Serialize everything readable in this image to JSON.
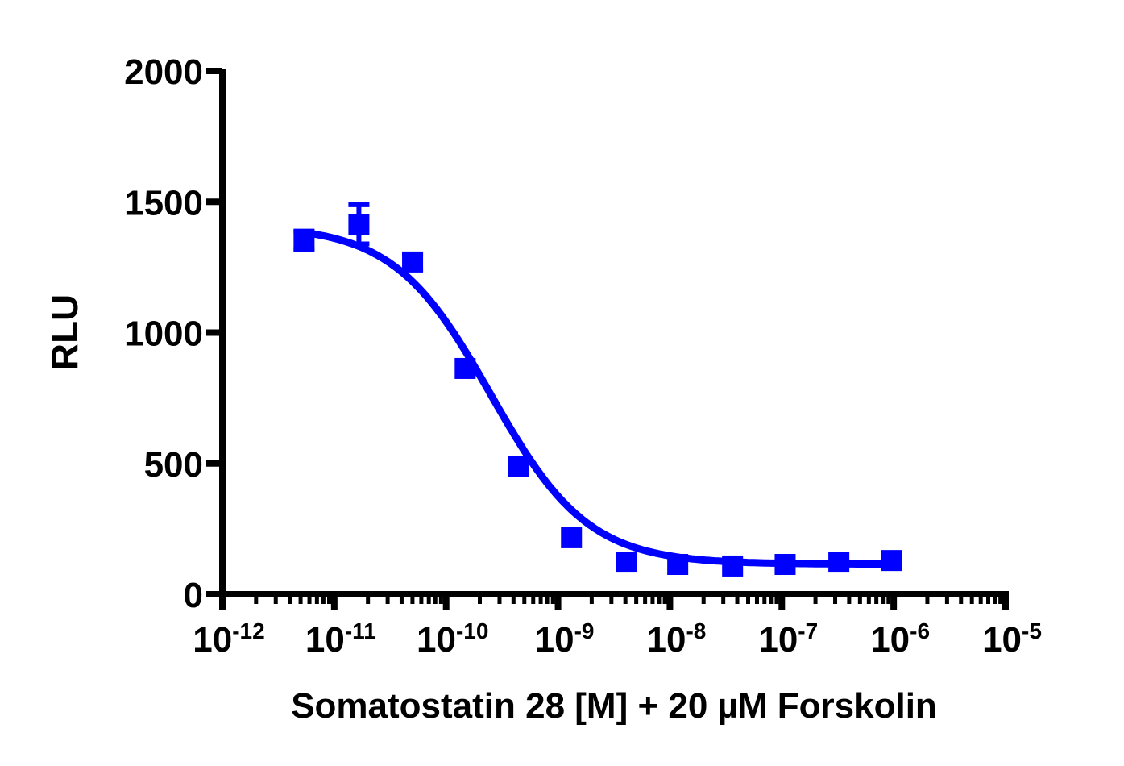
{
  "chart_data": {
    "type": "scatter",
    "title": "",
    "xlabel": "Somatostatin 28 [M]  + 20 µM Forskolin",
    "ylabel": "RLU",
    "xscale": "log",
    "xlim_log10": [
      -12,
      -5
    ],
    "ylim": [
      0,
      2000
    ],
    "grid": false,
    "legend": null,
    "y_ticks": [
      "0",
      "500",
      "1000",
      "1500",
      "2000"
    ],
    "x_ticks": [
      {
        "base": "10",
        "exp": "-12"
      },
      {
        "base": "10",
        "exp": "-11"
      },
      {
        "base": "10",
        "exp": "-10"
      },
      {
        "base": "10",
        "exp": "-9"
      },
      {
        "base": "10",
        "exp": "-8"
      },
      {
        "base": "10",
        "exp": "-7"
      },
      {
        "base": "10",
        "exp": "-6"
      },
      {
        "base": "10",
        "exp": "-5"
      }
    ],
    "series": [
      {
        "name": "Somatostatin 28",
        "color": "#0000ff",
        "marker": "square",
        "x_log10": [
          -11.27,
          -10.78,
          -10.3,
          -9.83,
          -9.35,
          -8.88,
          -8.39,
          -7.93,
          -7.44,
          -6.97,
          -6.49,
          -6.02
        ],
        "values": [
          1353,
          1414,
          1270,
          863,
          490,
          216,
          123,
          114,
          108,
          114,
          123,
          129
        ],
        "error": [
          35,
          75,
          30,
          15,
          15,
          10,
          10,
          10,
          10,
          10,
          10,
          10
        ]
      }
    ],
    "fit": {
      "type": "sigmoidal dose-response (4PL)",
      "top": 1410,
      "bottom": 115,
      "log_ic50": -9.6,
      "hill": -1.0,
      "color": "#0000ff"
    }
  },
  "axes": {
    "ylabel": "RLU",
    "xlabel": "Somatostatin 28 [M]  + 20 µM Forskolin"
  }
}
